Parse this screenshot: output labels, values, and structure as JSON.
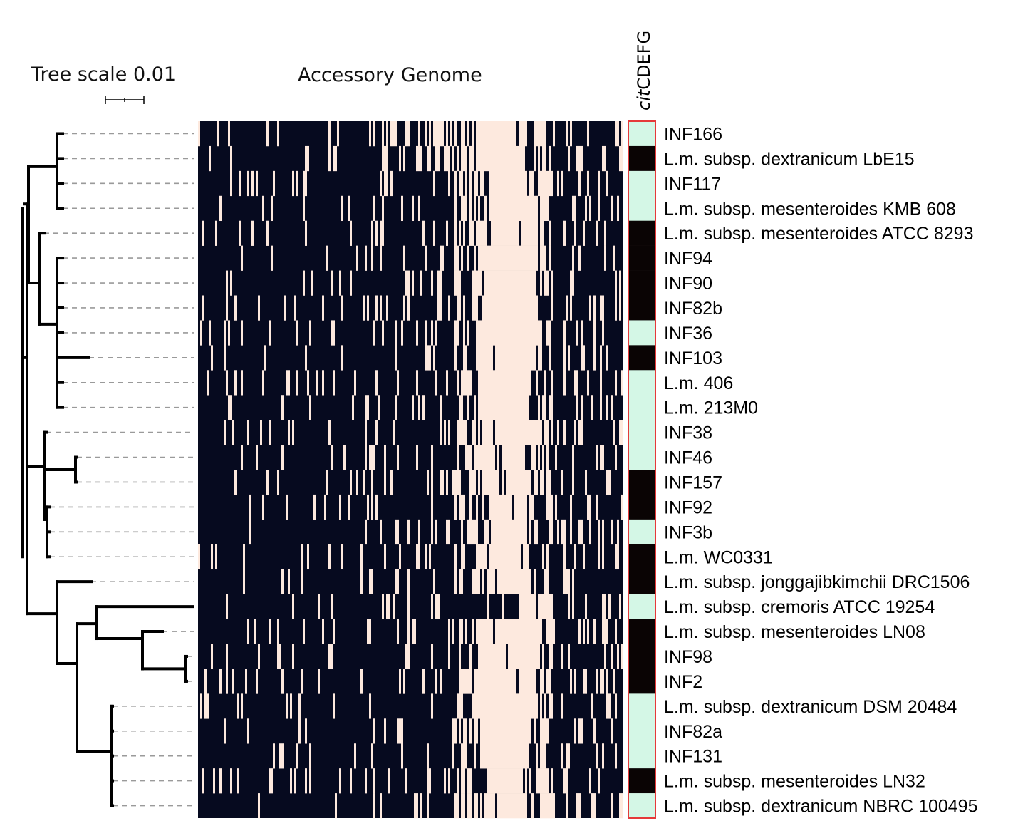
{
  "figure": {
    "tree_scale_label": "Tree scale 0.01",
    "heatmap_title": "Accessory Genome",
    "cit_column_title_italic": "cit",
    "cit_column_title_rest": "CDEFG",
    "colors": {
      "present": "#060a1f",
      "absent": "#fde9de",
      "cit_present": "#0a0404",
      "cit_absent": "#d4f7e6",
      "cit_border": "#e53a3a",
      "tree": "#000000",
      "guide": "#9a9a9a"
    }
  },
  "strains": [
    {
      "label": "INF166",
      "cit": 0
    },
    {
      "label": "L.m. subsp. dextranicum LbE15",
      "cit": 1
    },
    {
      "label": "INF117",
      "cit": 0
    },
    {
      "label": "L.m. subsp. mesenteroides KMB 608",
      "cit": 0
    },
    {
      "label": "L.m. subsp. mesenteroides ATCC 8293",
      "cit": 1
    },
    {
      "label": "INF94",
      "cit": 1
    },
    {
      "label": "INF90",
      "cit": 1
    },
    {
      "label": "INF82b",
      "cit": 1
    },
    {
      "label": "INF36",
      "cit": 0
    },
    {
      "label": "INF103",
      "cit": 1
    },
    {
      "label": "L.m. 406",
      "cit": 0
    },
    {
      "label": "L.m. 213M0",
      "cit": 0
    },
    {
      "label": "INF38",
      "cit": 0
    },
    {
      "label": "INF46",
      "cit": 0
    },
    {
      "label": "INF157",
      "cit": 1
    },
    {
      "label": "INF92",
      "cit": 1
    },
    {
      "label": "INF3b",
      "cit": 0
    },
    {
      "label": "L.m. WC0331",
      "cit": 1
    },
    {
      "label": "L.m. subsp. jonggajibkimchii DRC1506",
      "cit": 1
    },
    {
      "label": "L.m. subsp. cremoris ATCC 19254",
      "cit": 0
    },
    {
      "label": "L.m. subsp. mesenteroides LN08",
      "cit": 1
    },
    {
      "label": "INF98",
      "cit": 1
    },
    {
      "label": "INF2",
      "cit": 1
    },
    {
      "label": "L.m. subsp. dextranicum DSM 20484",
      "cit": 0
    },
    {
      "label": "INF82a",
      "cit": 0
    },
    {
      "label": "INF131",
      "cit": 0
    },
    {
      "label": "L.m. subsp. mesenteroides LN32",
      "cit": 1
    },
    {
      "label": "L.m. subsp. dextranicum NBRC 100495",
      "cit": 0
    }
  ]
}
